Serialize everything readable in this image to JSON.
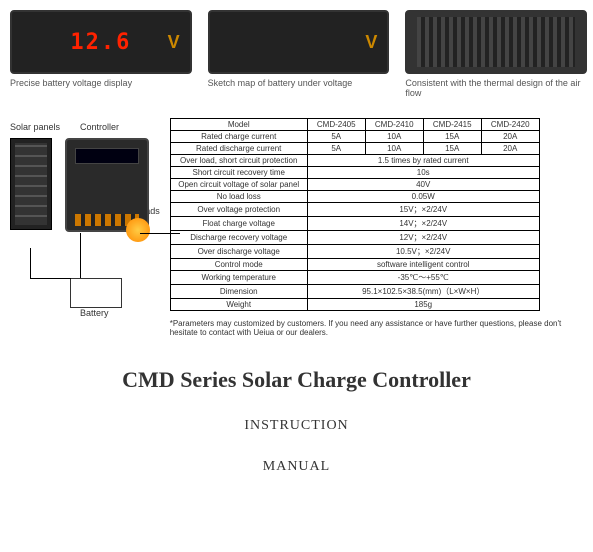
{
  "top": {
    "items": [
      {
        "caption": "Precise battery voltage display",
        "display": "12.6",
        "unit": "V",
        "type": "led"
      },
      {
        "caption": "Sketch map of battery under voltage",
        "display": "",
        "unit": "V",
        "type": "dark"
      },
      {
        "caption": "Consistent with the thermal design of the air flow",
        "display": "",
        "unit": "",
        "type": "heatsink"
      }
    ]
  },
  "diagram": {
    "labels": {
      "solar": "Solar panels",
      "controller": "Controller",
      "loads": "Loads",
      "battery": "Battery"
    }
  },
  "specs": {
    "columns": [
      "Model",
      "CMD-2405",
      "CMD-2410",
      "CMD-2415",
      "CMD-2420"
    ],
    "rows": [
      {
        "label": "Rated charge current",
        "cells": [
          "5A",
          "10A",
          "15A",
          "20A"
        ]
      },
      {
        "label": "Rated discharge current",
        "cells": [
          "5A",
          "10A",
          "15A",
          "20A"
        ]
      },
      {
        "label": "Over load, short circuit protection",
        "span": "1.5 times by rated current"
      },
      {
        "label": "Short circuit recovery time",
        "span": "10s"
      },
      {
        "label": "Open circuit voltage of solar panel",
        "span": "40V"
      },
      {
        "label": "No load loss",
        "span": "0.05W"
      },
      {
        "label": "Over voltage protection",
        "span": "15V；×2/24V"
      },
      {
        "label": "Float charge voltage",
        "span": "14V；×2/24V"
      },
      {
        "label": "Discharge recovery voltage",
        "span": "12V；×2/24V"
      },
      {
        "label": "Over discharge voltage",
        "span": "10.5V；×2/24V"
      },
      {
        "label": "Control mode",
        "span": "software intelligent control"
      },
      {
        "label": "Working temperature",
        "span": "-35℃～+55℃"
      },
      {
        "label": "Dimension",
        "span": "95.1×102.5×38.5(mm)（L×W×H）"
      },
      {
        "label": "Weight",
        "span": "185g"
      }
    ]
  },
  "footnote": "*Parameters may customized by customers. If you need any assistance or have further questions, please don't hesitate to contact with Ueiua or our dealers.",
  "title": "CMD Series Solar Charge Controller",
  "subtitle1": "INSTRUCTION",
  "subtitle2": "MANUAL"
}
